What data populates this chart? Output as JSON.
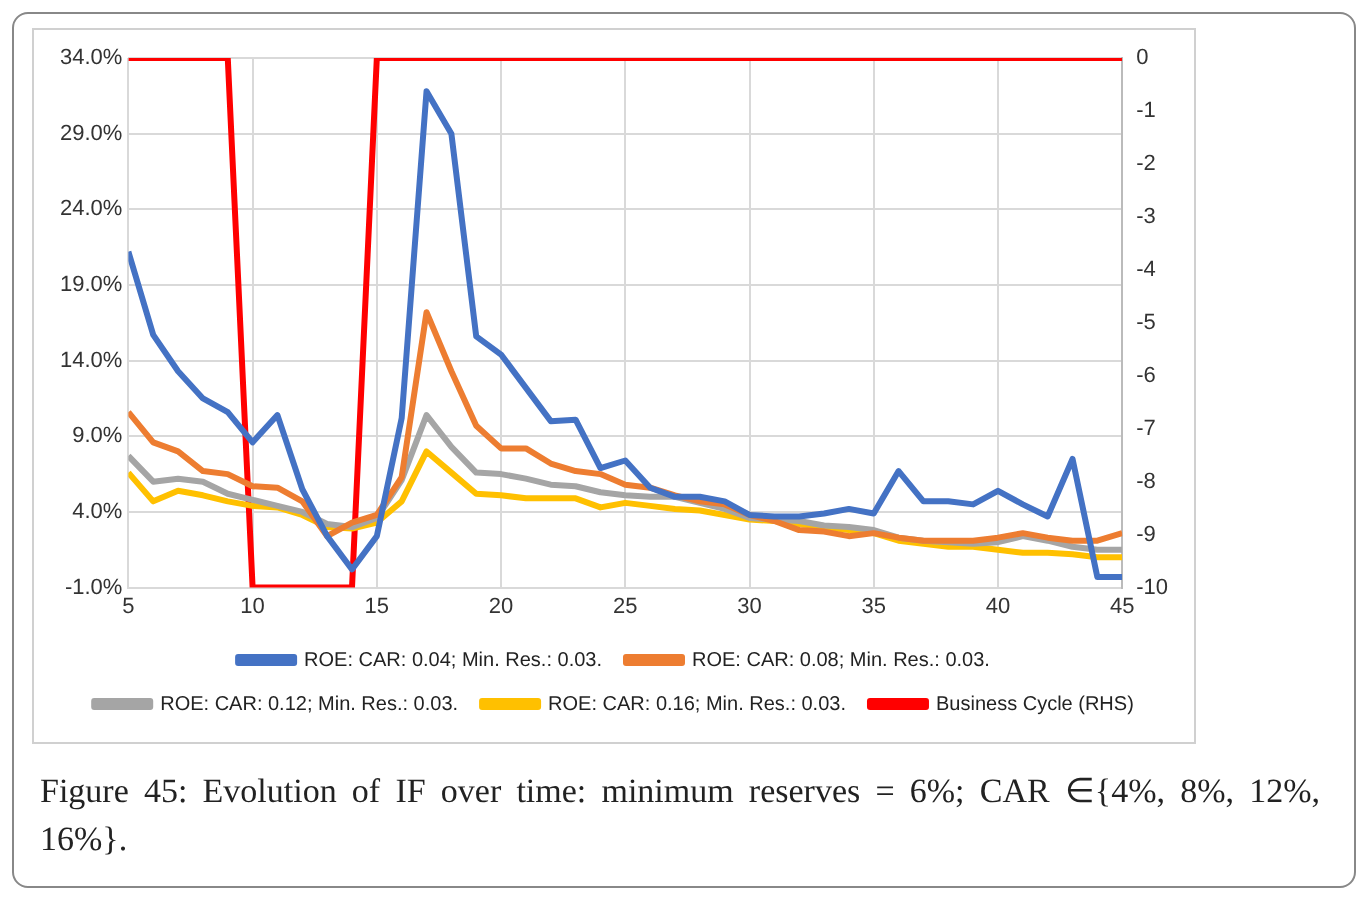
{
  "chart_data": {
    "type": "line",
    "x": [
      5,
      6,
      7,
      8,
      9,
      10,
      11,
      12,
      13,
      14,
      15,
      16,
      17,
      18,
      19,
      20,
      21,
      22,
      23,
      24,
      25,
      26,
      27,
      28,
      29,
      30,
      31,
      32,
      33,
      34,
      35,
      36,
      37,
      38,
      39,
      40,
      41,
      42,
      43,
      44,
      45
    ],
    "series": [
      {
        "name": "ROE: CAR: 0.04; Min. Res.: 0.03.",
        "color": "#4472c4",
        "values": [
          21.2,
          15.7,
          13.3,
          11.5,
          10.6,
          8.6,
          10.4,
          5.5,
          2.4,
          0.2,
          2.4,
          10.2,
          31.8,
          29.0,
          15.6,
          14.4,
          12.2,
          10.0,
          10.1,
          6.9,
          7.4,
          5.6,
          5.0,
          5.0,
          4.7,
          3.8,
          3.7,
          3.7,
          3.9,
          4.2,
          3.9,
          6.7,
          4.7,
          4.7,
          4.5,
          5.4,
          4.5,
          3.7,
          7.5,
          -0.3,
          -0.3
        ]
      },
      {
        "name": "ROE: CAR: 0.08; Min. Res.: 0.03.",
        "color": "#ed7d31",
        "values": [
          10.6,
          8.6,
          8.0,
          6.7,
          6.5,
          5.7,
          5.6,
          4.7,
          2.4,
          3.3,
          3.8,
          6.3,
          17.2,
          13.3,
          9.7,
          8.2,
          8.2,
          7.2,
          6.7,
          6.5,
          5.8,
          5.6,
          5.1,
          4.7,
          4.5,
          3.8,
          3.4,
          2.8,
          2.7,
          2.4,
          2.6,
          2.3,
          2.1,
          2.1,
          2.1,
          2.3,
          2.6,
          2.3,
          2.1,
          2.1,
          2.6
        ]
      },
      {
        "name": "ROE: CAR: 0.12; Min. Res.: 0.03.",
        "color": "#a5a5a5",
        "values": [
          7.7,
          6.0,
          6.2,
          6.0,
          5.2,
          4.8,
          4.4,
          4.0,
          3.2,
          3.0,
          3.6,
          6.1,
          10.4,
          8.3,
          6.6,
          6.5,
          6.2,
          5.8,
          5.7,
          5.3,
          5.1,
          5.0,
          5.0,
          4.6,
          4.2,
          3.6,
          3.5,
          3.4,
          3.1,
          3.0,
          2.8,
          2.3,
          2.1,
          2.0,
          1.9,
          2.0,
          2.4,
          2.1,
          1.7,
          1.5,
          1.5
        ]
      },
      {
        "name": "ROE: CAR: 0.16; Min. Res.: 0.03.",
        "color": "#ffc000",
        "values": [
          6.6,
          4.7,
          5.4,
          5.1,
          4.7,
          4.4,
          4.3,
          3.8,
          3.0,
          2.9,
          3.3,
          4.7,
          8.0,
          6.6,
          5.2,
          5.1,
          4.9,
          4.9,
          4.9,
          4.3,
          4.6,
          4.4,
          4.2,
          4.1,
          3.8,
          3.5,
          3.4,
          3.2,
          3.0,
          2.8,
          2.6,
          2.1,
          1.9,
          1.7,
          1.7,
          1.5,
          1.3,
          1.3,
          1.2,
          1.0,
          1.0
        ]
      },
      {
        "name": "Business Cycle (RHS)",
        "color": "#ff0000",
        "axis": "y2",
        "values": [
          0,
          0,
          0,
          0,
          0,
          -10,
          -10,
          -10,
          -10,
          -10,
          0,
          0,
          0,
          0,
          0,
          0,
          0,
          0,
          0,
          0,
          0,
          0,
          0,
          0,
          0,
          0,
          0,
          0,
          0,
          0,
          0,
          0,
          0,
          0,
          0,
          0,
          0,
          0,
          0,
          0,
          0
        ]
      }
    ],
    "xlim": [
      5,
      45
    ],
    "xticks": [
      5,
      10,
      15,
      20,
      25,
      30,
      35,
      40,
      45
    ],
    "ylim": [
      -1,
      34
    ],
    "yticks": [
      {
        "value": -1,
        "label": "-1.0%"
      },
      {
        "value": 4,
        "label": "4.0%"
      },
      {
        "value": 9,
        "label": "9.0%"
      },
      {
        "value": 14,
        "label": "14.0%"
      },
      {
        "value": 19,
        "label": "19.0%"
      },
      {
        "value": 24,
        "label": "24.0%"
      },
      {
        "value": 29,
        "label": "29.0%"
      },
      {
        "value": 34,
        "label": "34.0%"
      }
    ],
    "y2lim": [
      -10,
      0
    ],
    "y2ticks": [
      0,
      -1,
      -2,
      -3,
      -4,
      -5,
      -6,
      -7,
      -8,
      -9,
      -10
    ],
    "grid": true,
    "legend": "bottom",
    "marker": "none",
    "line_style": "solid",
    "annotations": [
      "Figure 45: Evolution of IF over time: minimum reserves = 6%; CAR ∈{4%, 8%, 12%, 16%}."
    ]
  }
}
